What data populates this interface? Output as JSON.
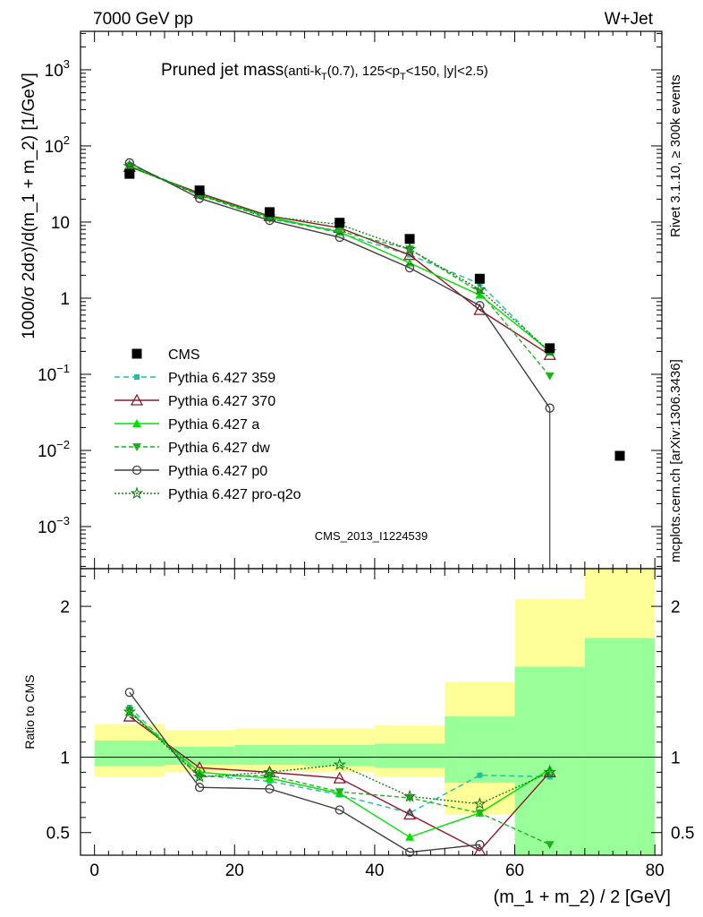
{
  "header": {
    "left": "7000 GeV pp",
    "right": "W+Jet",
    "title_main": "Pruned jet mass",
    "title_sub_pre": "(anti-k",
    "title_sub_k_sub": "T",
    "title_sub_mid": "(0.7), 125<p",
    "title_sub_p_sub": "T",
    "title_sub_post": "<150, |y|<2.5)"
  },
  "side_labels": {
    "rivet": "Rivet 3.1.10, ≥ 300k events",
    "mcplots": "mcplots.cern.ch [arXiv:1306.3436]"
  },
  "watermark": "CMS_2013_I1224539",
  "chart_data": [
    {
      "type": "line",
      "panel": "main",
      "ylabel": "1000/σ 2dσ)/d(m_1 + m_2) [1/GeV]",
      "yscale": "log",
      "ylim": [
        0.00028,
        3200
      ],
      "xlim": [
        -2,
        81
      ],
      "y_ticks": [
        {
          "v": 1000,
          "base": "10",
          "exp": "3"
        },
        {
          "v": 100,
          "base": "10",
          "exp": "2"
        },
        {
          "v": 10,
          "base": "10",
          "exp": ""
        },
        {
          "v": 1,
          "base": "1",
          "exp": ""
        },
        {
          "v": 0.1,
          "base": "10",
          "exp": "−1"
        },
        {
          "v": 0.01,
          "base": "10",
          "exp": "−2"
        },
        {
          "v": 0.001,
          "base": "10",
          "exp": "−3"
        }
      ],
      "x": [
        5,
        15,
        25,
        35,
        45,
        55,
        65,
        75
      ],
      "series": [
        {
          "name": "CMS",
          "color": "#000000",
          "marker": "square",
          "dash": "",
          "values": [
            43,
            26,
            13.5,
            9.8,
            6.0,
            1.8,
            0.22,
            0.0085
          ]
        },
        {
          "name": "Pythia 6.427 359",
          "color": "#1fbf9f",
          "marker": "smallsquare",
          "dash": "6,4",
          "values": [
            57,
            23,
            11.3,
            7.2,
            3.7,
            1.55,
            0.19,
            null
          ]
        },
        {
          "name": "Pythia 6.427 370",
          "color": "#8b1a2b",
          "marker": "triangle-open",
          "dash": "",
          "values": [
            53,
            24,
            12.0,
            8.4,
            3.7,
            0.7,
            0.18,
            null
          ]
        },
        {
          "name": "Pythia 6.427 a",
          "color": "#00e000",
          "marker": "triangle",
          "dash": "",
          "values": [
            55,
            23,
            11.6,
            7.4,
            2.9,
            1.1,
            0.2,
            null
          ]
        },
        {
          "name": "Pythia 6.427 dw",
          "color": "#22b022",
          "marker": "triangle-down",
          "dash": "5,3",
          "values": [
            54,
            22.5,
            11.0,
            7.6,
            4.4,
            1.2,
            0.095,
            null
          ]
        },
        {
          "name": "Pythia 6.427 p0",
          "color": "#404040",
          "marker": "circle-open",
          "dash": "",
          "values": [
            60,
            20.5,
            10.5,
            6.3,
            2.5,
            0.8,
            0.036,
            null
          ]
        },
        {
          "name": "Pythia 6.427 pro-q2o",
          "color": "#1a7f1a",
          "marker": "star",
          "dash": "2,2",
          "values": [
            54,
            23,
            11.8,
            9.3,
            4.4,
            1.3,
            0.2,
            null
          ]
        }
      ]
    },
    {
      "type": "line",
      "panel": "ratio",
      "xlabel": "(m_1 + m_2) / 2 [GeV]",
      "ylabel": "Ratio to CMS",
      "ylim": [
        0.35,
        2.25
      ],
      "xlim": [
        -2,
        81
      ],
      "x_ticks": [
        0,
        20,
        40,
        60,
        80
      ],
      "y_ticks": [
        0.5,
        1,
        2
      ],
      "bands": [
        {
          "x0": 0,
          "x1": 10,
          "yellow": [
            0.87,
            1.22
          ],
          "green": [
            0.94,
            1.11
          ]
        },
        {
          "x0": 10,
          "x1": 20,
          "yellow": [
            0.9,
            1.18
          ],
          "green": [
            0.95,
            1.07
          ]
        },
        {
          "x0": 20,
          "x1": 30,
          "yellow": [
            0.91,
            1.19
          ],
          "green": [
            0.95,
            1.08
          ]
        },
        {
          "x0": 30,
          "x1": 40,
          "yellow": [
            0.9,
            1.19
          ],
          "green": [
            0.94,
            1.08
          ]
        },
        {
          "x0": 40,
          "x1": 50,
          "yellow": [
            0.87,
            1.21
          ],
          "green": [
            0.93,
            1.09
          ]
        },
        {
          "x0": 50,
          "x1": 60,
          "yellow": [
            0.62,
            1.5
          ],
          "green": [
            0.83,
            1.27
          ]
        },
        {
          "x0": 60,
          "x1": 70,
          "yellow": [
            0.35,
            2.05
          ],
          "green": [
            0.35,
            1.6
          ]
        },
        {
          "x0": 70,
          "x1": 80,
          "yellow": [
            0.35,
            2.25
          ],
          "green": [
            0.35,
            1.79
          ]
        }
      ],
      "x": [
        5,
        15,
        25,
        35,
        45,
        55,
        65
      ],
      "series": [
        {
          "name": "Pythia 6.427 359",
          "values": [
            1.33,
            0.88,
            0.84,
            0.75,
            0.63,
            0.88,
            0.87
          ]
        },
        {
          "name": "Pythia 6.427 370",
          "values": [
            1.27,
            0.93,
            0.9,
            0.86,
            0.62,
            0.38,
            0.9
          ]
        },
        {
          "name": "Pythia 6.427 a",
          "values": [
            1.3,
            0.9,
            0.86,
            0.76,
            0.47,
            0.63,
            0.92
          ]
        },
        {
          "name": "Pythia 6.427 dw",
          "values": [
            1.31,
            0.87,
            0.88,
            0.77,
            0.73,
            0.63,
            0.42
          ]
        },
        {
          "name": "Pythia 6.427 p0",
          "values": [
            1.43,
            0.8,
            0.79,
            0.65,
            0.37,
            0.42,
            null
          ]
        },
        {
          "name": "Pythia 6.427 pro-q2o",
          "values": [
            1.3,
            0.87,
            0.9,
            0.95,
            0.74,
            0.69,
            0.9
          ]
        }
      ]
    }
  ]
}
